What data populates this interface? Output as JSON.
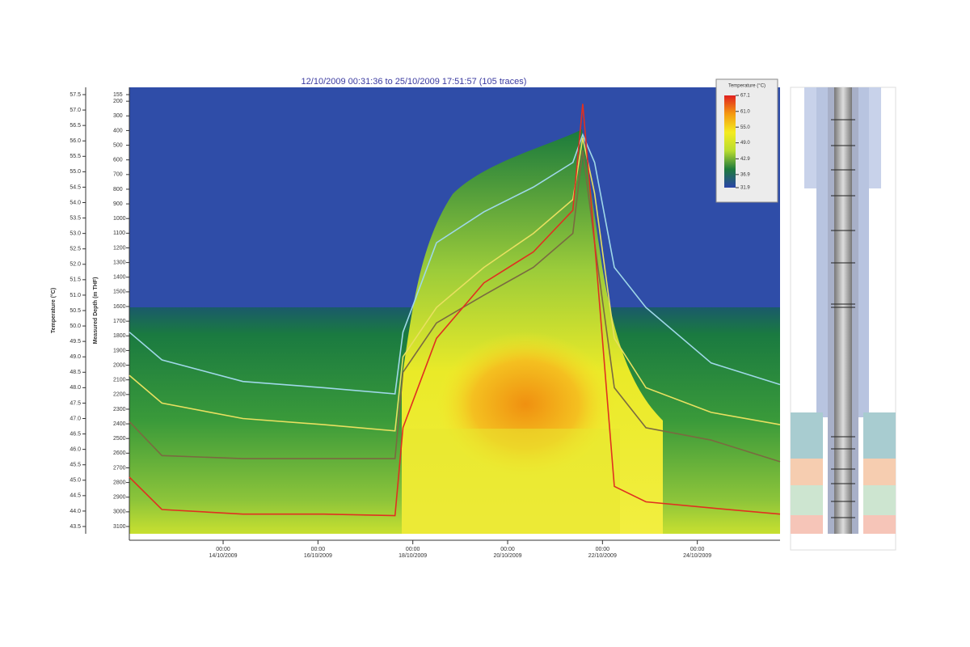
{
  "chart_data": {
    "type": "line",
    "title": "12/10/2009 00:31:36 to 25/10/2009 17:51:57 (105 traces)",
    "ylabel": "Temperature (°C)",
    "y2label": "Measured Depth (m THF)",
    "ylim": [
      43.5,
      57.5
    ],
    "yticks": [
      43.5,
      {
        "value": 44,
        "label": "44.0"
      },
      44.5,
      {
        "value": 45,
        "label": "45.0"
      },
      45.5,
      {
        "value": 46,
        "label": "46.0"
      },
      46.5,
      {
        "value": 47,
        "label": "47.0"
      },
      47.5,
      {
        "value": 48,
        "label": "48.0"
      },
      48.5,
      {
        "value": 49,
        "label": "49.0"
      },
      49.5,
      {
        "value": 50,
        "label": "50.0"
      },
      50.5,
      {
        "value": 51,
        "label": "51.0"
      },
      51.5,
      {
        "value": 52,
        "label": "52.0"
      },
      52.5,
      {
        "value": 53,
        "label": "53.0"
      },
      53.5,
      {
        "value": 54,
        "label": "54.0"
      },
      54.5,
      {
        "value": 55,
        "label": "55.0"
      },
      55.5,
      {
        "value": 56,
        "label": "56.0"
      },
      56.5,
      {
        "value": 57,
        "label": "57.0"
      },
      57.5
    ],
    "y2lim": [
      155,
      3100
    ],
    "y2_inverted": true,
    "y2ticks": [
      155,
      200,
      300,
      400,
      500,
      600,
      700,
      800,
      900,
      1000,
      1100,
      1200,
      1300,
      1400,
      1500,
      1600,
      1700,
      1800,
      1900,
      2000,
      2100,
      2200,
      2300,
      2400,
      2500,
      2600,
      2700,
      2800,
      2900,
      3000,
      3100
    ],
    "xlim": [
      "2009-10-12 00:31:36",
      "2009-10-25 17:51:57"
    ],
    "xticks": [
      {
        "value": "2009-10-14 00:00",
        "label": "00:00\n14/10/2009"
      },
      {
        "value": "2009-10-16 00:00",
        "label": "00:00\n16/10/2009"
      },
      {
        "value": "2009-10-18 00:00",
        "label": "00:00\n18/10/2009"
      },
      {
        "value": "2009-10-20 00:00",
        "label": "00:00\n20/10/2009"
      },
      {
        "value": "2009-10-22 00:00",
        "label": "00:00\n22/10/2009"
      },
      {
        "value": "2009-10-24 00:00",
        "label": "00:00\n24/10/2009"
      }
    ],
    "x": [
      "2009-10-12 00:31:36",
      "2009-10-12 17:00",
      "2009-10-14 10:00",
      "2009-10-16 03:00",
      "2009-10-17 15:00",
      "2009-10-17 19:00",
      "2009-10-18 12:00",
      "2009-10-19 12:00",
      "2009-10-20 13:00",
      "2009-10-21 09:00",
      "2009-10-21 14:00",
      "2009-10-21 20:00",
      "2009-10-22 06:00",
      "2009-10-22 22:00",
      "2009-10-24 07:00",
      "2009-10-25 17:51:57"
    ],
    "series": [
      {
        "color": "#9fd8e8",
        "values": [
          49.8,
          48.9,
          48.2,
          48.0,
          47.8,
          49.8,
          52.7,
          53.7,
          54.5,
          55.3,
          56.2,
          55.3,
          51.9,
          50.6,
          48.8,
          48.1
        ]
      },
      {
        "color": "#e8e060",
        "values": [
          48.4,
          47.5,
          47.0,
          46.8,
          46.6,
          49.0,
          50.6,
          51.9,
          53.0,
          54.1,
          56.1,
          54.3,
          49.6,
          48.0,
          47.2,
          46.8
        ]
      },
      {
        "color": "#7a6a40",
        "values": [
          46.9,
          45.8,
          45.7,
          45.7,
          45.7,
          48.5,
          50.1,
          51.0,
          51.9,
          53.0,
          55.7,
          52.7,
          48.0,
          46.7,
          46.3,
          45.6
        ]
      },
      {
        "color": "#e03020",
        "values": [
          45.1,
          44.05,
          43.9,
          43.9,
          43.85,
          46.7,
          49.6,
          51.4,
          52.4,
          53.75,
          57.2,
          52.7,
          44.8,
          44.3,
          44.1,
          43.9
        ]
      }
    ],
    "colorbar": {
      "title": "Temperature (°C)",
      "colors": [
        "#2a44a8",
        "#1d7a3c",
        "#b8dc30",
        "#f4ec20",
        "#f49a10",
        "#e02020"
      ],
      "ticks": [
        67.1,
        {
          "value": 61,
          "label": "61.0"
        },
        {
          "value": 55,
          "label": "55.0"
        },
        {
          "value": 49,
          "label": "49.0"
        },
        42.9,
        36.9,
        31.9
      ]
    }
  }
}
